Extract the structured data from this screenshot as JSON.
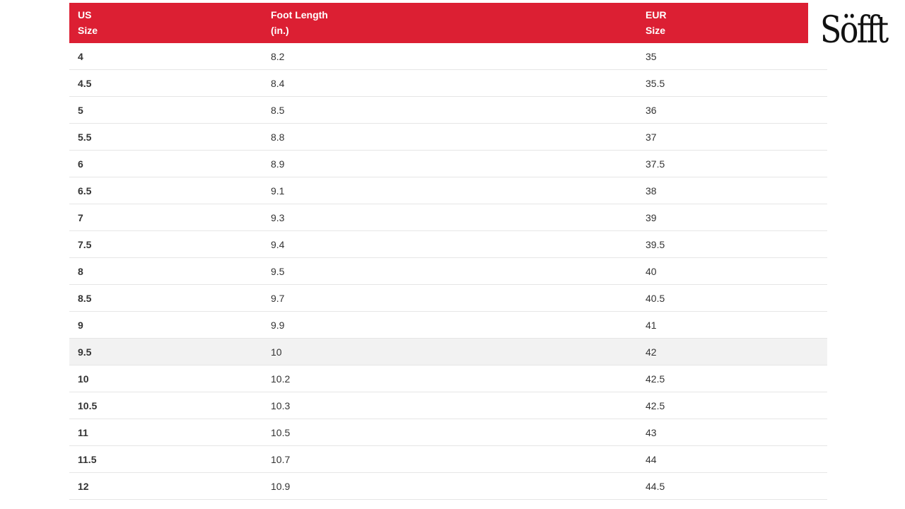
{
  "brand": {
    "logo_text": "Söfft",
    "accent_color": "#dc1f33"
  },
  "table": {
    "headers": [
      [
        "US",
        "Size"
      ],
      [
        "Foot Length",
        "(in.)"
      ],
      [
        "EUR",
        "Size"
      ]
    ],
    "rows": [
      [
        "4",
        "8.2",
        "35"
      ],
      [
        "4.5",
        "8.4",
        "35.5"
      ],
      [
        "5",
        "8.5",
        "36"
      ],
      [
        "5.5",
        "8.8",
        "37"
      ],
      [
        "6",
        "8.9",
        "37.5"
      ],
      [
        "6.5",
        "9.1",
        "38"
      ],
      [
        "7",
        "9.3",
        "39"
      ],
      [
        "7.5",
        "9.4",
        "39.5"
      ],
      [
        "8",
        "9.5",
        "40"
      ],
      [
        "8.5",
        "9.7",
        "40.5"
      ],
      [
        "9",
        "9.9",
        "41"
      ],
      [
        "9.5",
        "10",
        "42"
      ],
      [
        "10",
        "10.2",
        "42.5"
      ],
      [
        "10.5",
        "10.3",
        "42.5"
      ],
      [
        "11",
        "10.5",
        "43"
      ],
      [
        "11.5",
        "10.7",
        "44"
      ],
      [
        "12",
        "10.9",
        "44.5"
      ]
    ],
    "highlighted_row": "9.5"
  }
}
